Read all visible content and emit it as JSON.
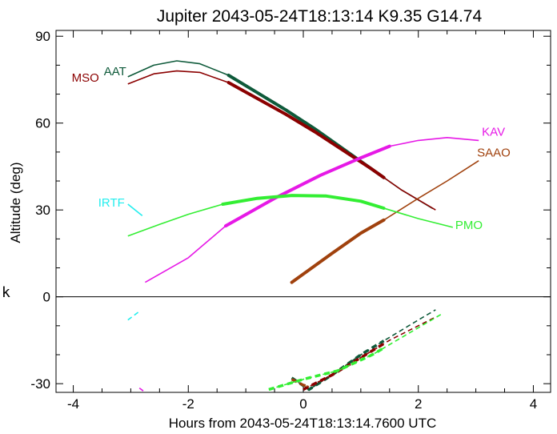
{
  "chart_data": {
    "type": "line",
    "title": "Jupiter 2043-05-24T18:13:14  K9.35  G14.74",
    "xlabel": "Hours from 2043-05-24T18:13:14.7600 UTC",
    "ylabel": "Altitude (deg)",
    "xlim": [
      -4.3,
      4.3
    ],
    "ylim": [
      -33,
      92
    ],
    "x_ticks": [
      -4,
      -2,
      0,
      2,
      4
    ],
    "y_ticks": [
      90,
      60,
      30,
      0,
      -30
    ],
    "side_mark": "k",
    "grid": false,
    "series": [
      {
        "name": "AAT",
        "color": "#0e5a3a",
        "points": [
          [
            -3.05,
            76
          ],
          [
            -2.6,
            80
          ],
          [
            -2.2,
            81.5
          ],
          [
            -1.8,
            80.5
          ],
          [
            -1.3,
            76.5
          ],
          [
            -0.8,
            70.5
          ],
          [
            -0.3,
            64.5
          ],
          [
            0.2,
            58
          ],
          [
            0.7,
            51
          ],
          [
            1.2,
            44
          ],
          [
            1.7,
            37
          ],
          [
            2.25,
            30.5
          ]
        ],
        "thick": [
          [
            -1.3,
            1.4
          ]
        ],
        "below": {
          "points": [
            [
              -0.2,
              -28
            ],
            [
              0.1,
              -32
            ],
            [
              0.5,
              -27
            ],
            [
              1.0,
              -20
            ],
            [
              1.5,
              -14
            ],
            [
              2.0,
              -8
            ],
            [
              2.3,
              -4.5
            ]
          ],
          "thick": [
            [
              -0.2,
              1.4
            ]
          ]
        }
      },
      {
        "name": "MSO",
        "color": "#8b0000",
        "points": [
          [
            -3.05,
            73.5
          ],
          [
            -2.6,
            77
          ],
          [
            -2.2,
            78
          ],
          [
            -1.8,
            77.5
          ],
          [
            -1.3,
            74
          ],
          [
            -0.8,
            68.5
          ],
          [
            -0.3,
            63
          ],
          [
            0.2,
            57
          ],
          [
            0.7,
            50.5
          ],
          [
            1.2,
            44
          ],
          [
            1.7,
            37
          ],
          [
            2.3,
            30
          ]
        ],
        "thick": [
          [
            -1.3,
            1.4
          ]
        ],
        "below": {
          "points": [
            [
              0.0,
              -32
            ],
            [
              0.5,
              -27
            ],
            [
              1.0,
              -21
            ],
            [
              1.5,
              -15
            ],
            [
              2.0,
              -10
            ],
            [
              2.3,
              -7
            ]
          ],
          "thick": [
            [
              0.0,
              1.4
            ]
          ]
        }
      },
      {
        "name": "KAV",
        "color": "#e619e6",
        "points": [
          [
            -2.75,
            5
          ],
          [
            -2.0,
            13.5
          ],
          [
            -1.35,
            24.5
          ],
          [
            -0.5,
            34
          ],
          [
            0.3,
            42
          ],
          [
            1.0,
            48
          ],
          [
            1.5,
            52
          ],
          [
            2.0,
            54
          ],
          [
            2.5,
            55
          ],
          [
            3.05,
            54
          ]
        ],
        "thick": [
          [
            -1.35,
            1.5
          ]
        ],
        "below": {
          "points": [
            [
              -2.85,
              -31.5
            ],
            [
              -2.75,
              -33
            ]
          ],
          "thick": []
        }
      },
      {
        "name": "SAAO",
        "color": "#a0410d",
        "points": [
          [
            -0.2,
            5
          ],
          [
            0.5,
            15
          ],
          [
            1.0,
            22
          ],
          [
            1.4,
            26.5
          ],
          [
            2.0,
            34
          ],
          [
            2.5,
            40
          ],
          [
            3.05,
            47
          ]
        ],
        "thick": [
          [
            -0.2,
            1.4
          ]
        ],
        "below": {
          "points": [
            [
              -0.2,
              -28.5
            ],
            [
              0.0,
              -30.5
            ],
            [
              0.1,
              -31
            ]
          ],
          "thick": [
            [
              -0.2,
              0.1
            ]
          ]
        }
      },
      {
        "name": "PMO",
        "color": "#33ee33",
        "points": [
          [
            -3.05,
            21
          ],
          [
            -2.5,
            25
          ],
          [
            -2.0,
            28.5
          ],
          [
            -1.4,
            32
          ],
          [
            -0.8,
            34
          ],
          [
            -0.2,
            35
          ],
          [
            0.4,
            34.8
          ],
          [
            1.0,
            33
          ],
          [
            1.5,
            30
          ],
          [
            2.0,
            27
          ],
          [
            2.6,
            24
          ]
        ],
        "thick": [
          [
            -1.4,
            1.4
          ]
        ],
        "below": {
          "points": [
            [
              -0.6,
              -32
            ],
            [
              0.0,
              -28.5
            ],
            [
              0.6,
              -25.5
            ],
            [
              1.2,
              -20
            ],
            [
              1.8,
              -13
            ],
            [
              2.4,
              -6
            ]
          ],
          "thick": [
            [
              -0.6,
              1.4
            ]
          ]
        }
      },
      {
        "name": "IRTF",
        "color": "#22eeee",
        "points": [
          [
            -3.05,
            32
          ],
          [
            -2.8,
            28
          ]
        ],
        "thick": [],
        "below": {
          "points": [
            [
              -3.05,
              -8
            ],
            [
              -2.85,
              -5
            ]
          ],
          "thick": []
        }
      }
    ]
  }
}
